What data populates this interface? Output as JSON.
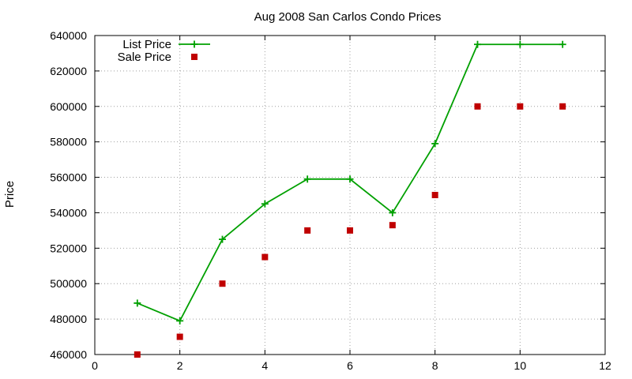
{
  "chart_data": {
    "type": "line",
    "title": "Aug 2008 San Carlos Condo Prices",
    "xlabel": "",
    "ylabel": "Price",
    "xlim": [
      0,
      12
    ],
    "ylim": [
      460000,
      640000
    ],
    "xticks": [
      0,
      2,
      4,
      6,
      8,
      10,
      12
    ],
    "yticks": [
      460000,
      480000,
      500000,
      520000,
      540000,
      560000,
      580000,
      600000,
      620000,
      640000
    ],
    "grid": true,
    "legend_position": "top-left",
    "series": [
      {
        "name": "List Price",
        "style": "linespoints",
        "marker": "plus",
        "color": "#00a000",
        "x": [
          1,
          2,
          3,
          4,
          5,
          6,
          7,
          8,
          9,
          10,
          11
        ],
        "values": [
          489000,
          479000,
          525000,
          545000,
          559000,
          559000,
          540000,
          579000,
          635000,
          635000,
          635000
        ]
      },
      {
        "name": "Sale Price",
        "style": "points",
        "marker": "square",
        "color": "#c00000",
        "x": [
          1,
          2,
          3,
          4,
          5,
          6,
          7,
          8,
          9,
          10,
          11
        ],
        "values": [
          460000,
          470000,
          500000,
          515000,
          530000,
          530000,
          533000,
          550000,
          600000,
          600000,
          600000
        ]
      }
    ]
  }
}
